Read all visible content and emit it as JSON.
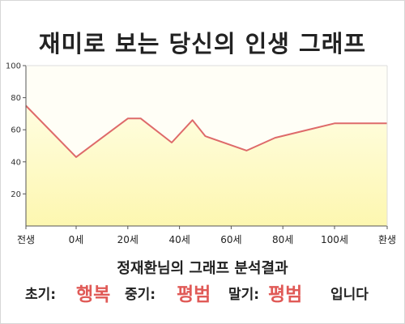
{
  "title": "재미로 보는 당신의 인생 그래프",
  "chart_data": {
    "type": "area",
    "title": "재미로 보는 당신의 인생 그래프",
    "x_tick_labels": [
      "전생",
      "0세",
      "20세",
      "40세",
      "60세",
      "80세",
      "100세",
      "환생"
    ],
    "y_ticks": [
      20,
      40,
      60,
      80,
      100
    ],
    "ylim": [
      0,
      100
    ],
    "grid": false,
    "series": [
      {
        "x": [
          "전생",
          "0세",
          "20세",
          "25세",
          "37세",
          "45세",
          "50세",
          "66세",
          "77세",
          "100세",
          "환생"
        ],
        "values": [
          75,
          43,
          67,
          67,
          52,
          66,
          56,
          47,
          55,
          64,
          64
        ]
      }
    ],
    "colors": {
      "line": "#de6a6a",
      "fill_top": "#fffde0",
      "fill_bottom": "#fdf7b0",
      "background": "#fffef6"
    }
  },
  "result": {
    "heading": "정재환님의 그래프 분석결과",
    "early_label": "초기:",
    "early_value": "행복",
    "middle_label": "중기:",
    "middle_value": "평범",
    "late_label": "말기:",
    "late_value": "평범",
    "ending": "입니다"
  }
}
